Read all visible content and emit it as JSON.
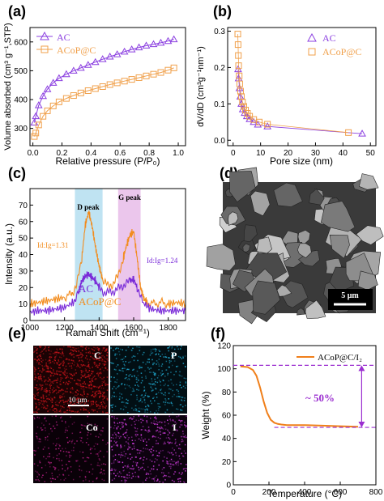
{
  "panel_labels": {
    "a": "(a)",
    "b": "(b)",
    "c": "(c)",
    "d": "(d)",
    "e": "(e)",
    "f": "(f)"
  },
  "colors": {
    "ac": "#8B3FE0",
    "acop": "#F0A04B",
    "c_ac": "#7A2BD8",
    "c_acop": "#F28C1E",
    "tga": "#F07F1A",
    "dash": "#9B2FD0",
    "d_band": "#BFE3F2",
    "g_band": "#EBC6EC",
    "map_c": "#C0141A",
    "map_p": "#1FA3C8",
    "map_co": "#B01E80",
    "map_i": "#C93BD6"
  },
  "chart_data": [
    {
      "id": "a",
      "type": "line",
      "xlabel": "Relative pressure (P/P₀)",
      "ylabel": "Volume absorbed (cm³ g⁻¹,STP)",
      "xlim": [
        -0.02,
        1.05
      ],
      "ylim": [
        240,
        650
      ],
      "xticks": [
        "0.0",
        "0.2",
        "0.4",
        "0.6",
        "0.8",
        "1.0"
      ],
      "yticks": [
        "300",
        "400",
        "500",
        "600"
      ],
      "legend": "top-left",
      "series": [
        {
          "name": "AC",
          "marker": "triangle",
          "color": "#8B3FE0",
          "x": [
            0.01,
            0.02,
            0.04,
            0.07,
            0.1,
            0.14,
            0.18,
            0.23,
            0.28,
            0.33,
            0.38,
            0.43,
            0.48,
            0.53,
            0.58,
            0.63,
            0.68,
            0.73,
            0.78,
            0.83,
            0.88,
            0.93,
            0.97
          ],
          "y": [
            320,
            342,
            380,
            412,
            436,
            458,
            474,
            488,
            500,
            510,
            520,
            530,
            540,
            549,
            557,
            566,
            574,
            581,
            587,
            592,
            597,
            603,
            609
          ]
        },
        {
          "name": "ACoP@C",
          "marker": "square",
          "color": "#F0A04B",
          "x": [
            0.01,
            0.02,
            0.04,
            0.07,
            0.1,
            0.14,
            0.18,
            0.23,
            0.28,
            0.33,
            0.38,
            0.43,
            0.48,
            0.53,
            0.58,
            0.63,
            0.68,
            0.73,
            0.78,
            0.83,
            0.88,
            0.93,
            0.97
          ],
          "y": [
            272,
            284,
            312,
            342,
            361,
            378,
            392,
            404,
            414,
            423,
            431,
            438,
            445,
            452,
            458,
            464,
            470,
            476,
            482,
            488,
            494,
            502,
            510
          ]
        }
      ]
    },
    {
      "id": "b",
      "type": "line",
      "xlabel": "Pore size (nm)",
      "ylabel": "dV/dD (cm³g⁻¹nm⁻¹)",
      "xlim": [
        -2,
        52
      ],
      "ylim": [
        -0.015,
        0.31
      ],
      "xticks": [
        "0",
        "10",
        "20",
        "30",
        "40",
        "50"
      ],
      "yticks": [
        "0.0",
        "0.1",
        "0.2",
        "0.3"
      ],
      "legend": "top-right",
      "series": [
        {
          "name": "AC",
          "marker": "triangle",
          "color": "#8B3FE0",
          "x": [
            1.8,
            2.0,
            2.3,
            2.6,
            3.0,
            3.5,
            4.2,
            5.0,
            6.0,
            7.5,
            9.0,
            12.5,
            47
          ],
          "y": [
            0.195,
            0.17,
            0.143,
            0.12,
            0.1,
            0.085,
            0.075,
            0.066,
            0.058,
            0.05,
            0.043,
            0.038,
            0.018
          ]
        },
        {
          "name": "ACoP@C",
          "marker": "square",
          "color": "#F0A04B",
          "x": [
            1.7,
            1.8,
            1.9,
            2.0,
            2.2,
            2.4,
            2.7,
            3.0,
            3.4,
            3.9,
            4.5,
            5.2,
            6.0,
            7.5,
            9.5,
            12.5,
            42
          ],
          "y": [
            0.292,
            0.263,
            0.233,
            0.205,
            0.177,
            0.155,
            0.135,
            0.12,
            0.105,
            0.093,
            0.083,
            0.074,
            0.066,
            0.057,
            0.05,
            0.044,
            0.021
          ]
        }
      ]
    },
    {
      "id": "c",
      "type": "line",
      "xlabel": "Raman Shift (cm⁻¹)",
      "ylabel": "Intensity (a.u.)",
      "xlim": [
        1000,
        1900
      ],
      "ylim": [
        0,
        80
      ],
      "xticks": [
        "1000",
        "1200",
        "1400",
        "1600",
        "1800"
      ],
      "yticks": [
        "0",
        "10",
        "20",
        "30",
        "40",
        "50",
        "60",
        "70"
      ],
      "bands": [
        {
          "label": "D peak",
          "range": [
            1260,
            1420
          ]
        },
        {
          "label": "G peak",
          "range": [
            1510,
            1640
          ]
        }
      ],
      "annotations": [
        "Id:Ig=1.31",
        "Id:Ig=1.24"
      ],
      "series": [
        {
          "name": "ACoP@C",
          "color": "#F28C1E",
          "x": [
            1000,
            1050,
            1100,
            1150,
            1200,
            1240,
            1270,
            1300,
            1320,
            1340,
            1360,
            1380,
            1400,
            1420,
            1450,
            1480,
            1510,
            1540,
            1560,
            1580,
            1600,
            1620,
            1640,
            1660,
            1680,
            1720,
            1760,
            1800,
            1850,
            1900
          ],
          "y": [
            10,
            11,
            12,
            13,
            14,
            16,
            21,
            38,
            58,
            66,
            57,
            44,
            33,
            25,
            21,
            22,
            27,
            38,
            46,
            52,
            54,
            38,
            20,
            13,
            11,
            10,
            11,
            10,
            11,
            10
          ]
        },
        {
          "name": "AC",
          "color": "#7A2BD8",
          "x": [
            1000,
            1050,
            1100,
            1150,
            1200,
            1250,
            1280,
            1300,
            1320,
            1340,
            1360,
            1380,
            1400,
            1430,
            1460,
            1490,
            1520,
            1550,
            1580,
            1600,
            1620,
            1650,
            1700,
            1750,
            1800,
            1850,
            1900
          ],
          "y": [
            5,
            6,
            6,
            7,
            8,
            11,
            17,
            24,
            27,
            28,
            26,
            24,
            20,
            17,
            17,
            18,
            20,
            22,
            24,
            25,
            20,
            11,
            7,
            6,
            6,
            6,
            6
          ]
        }
      ]
    },
    {
      "id": "f",
      "type": "line",
      "xlabel": "Temperature (°C)",
      "ylabel": "Weight (%)",
      "xlim": [
        0,
        800
      ],
      "ylim": [
        0,
        120
      ],
      "xticks": [
        "0",
        "200",
        "400",
        "600",
        "800"
      ],
      "yticks": [
        "0",
        "20",
        "40",
        "60",
        "80",
        "100",
        "120"
      ],
      "annotations": [
        "~ 50%"
      ],
      "legend": "top-right",
      "series": [
        {
          "name": "ACoP@C/I₂",
          "color": "#F07F1A",
          "x": [
            40,
            80,
            110,
            130,
            150,
            170,
            190,
            210,
            230,
            250,
            270,
            300,
            350,
            400,
            500,
            600,
            700
          ],
          "y": [
            102,
            101.5,
            99,
            94,
            84,
            72,
            62,
            56,
            53.5,
            52.5,
            52,
            51.5,
            51.5,
            51.5,
            51,
            50.5,
            50
          ]
        }
      ],
      "guides": {
        "upper": 103,
        "lower": 49.5
      }
    }
  ],
  "sem": {
    "scale_label": "5 μm"
  },
  "maps": {
    "c": "C",
    "p": "P",
    "co": "Co",
    "i": "I",
    "scale": "10 μm"
  }
}
